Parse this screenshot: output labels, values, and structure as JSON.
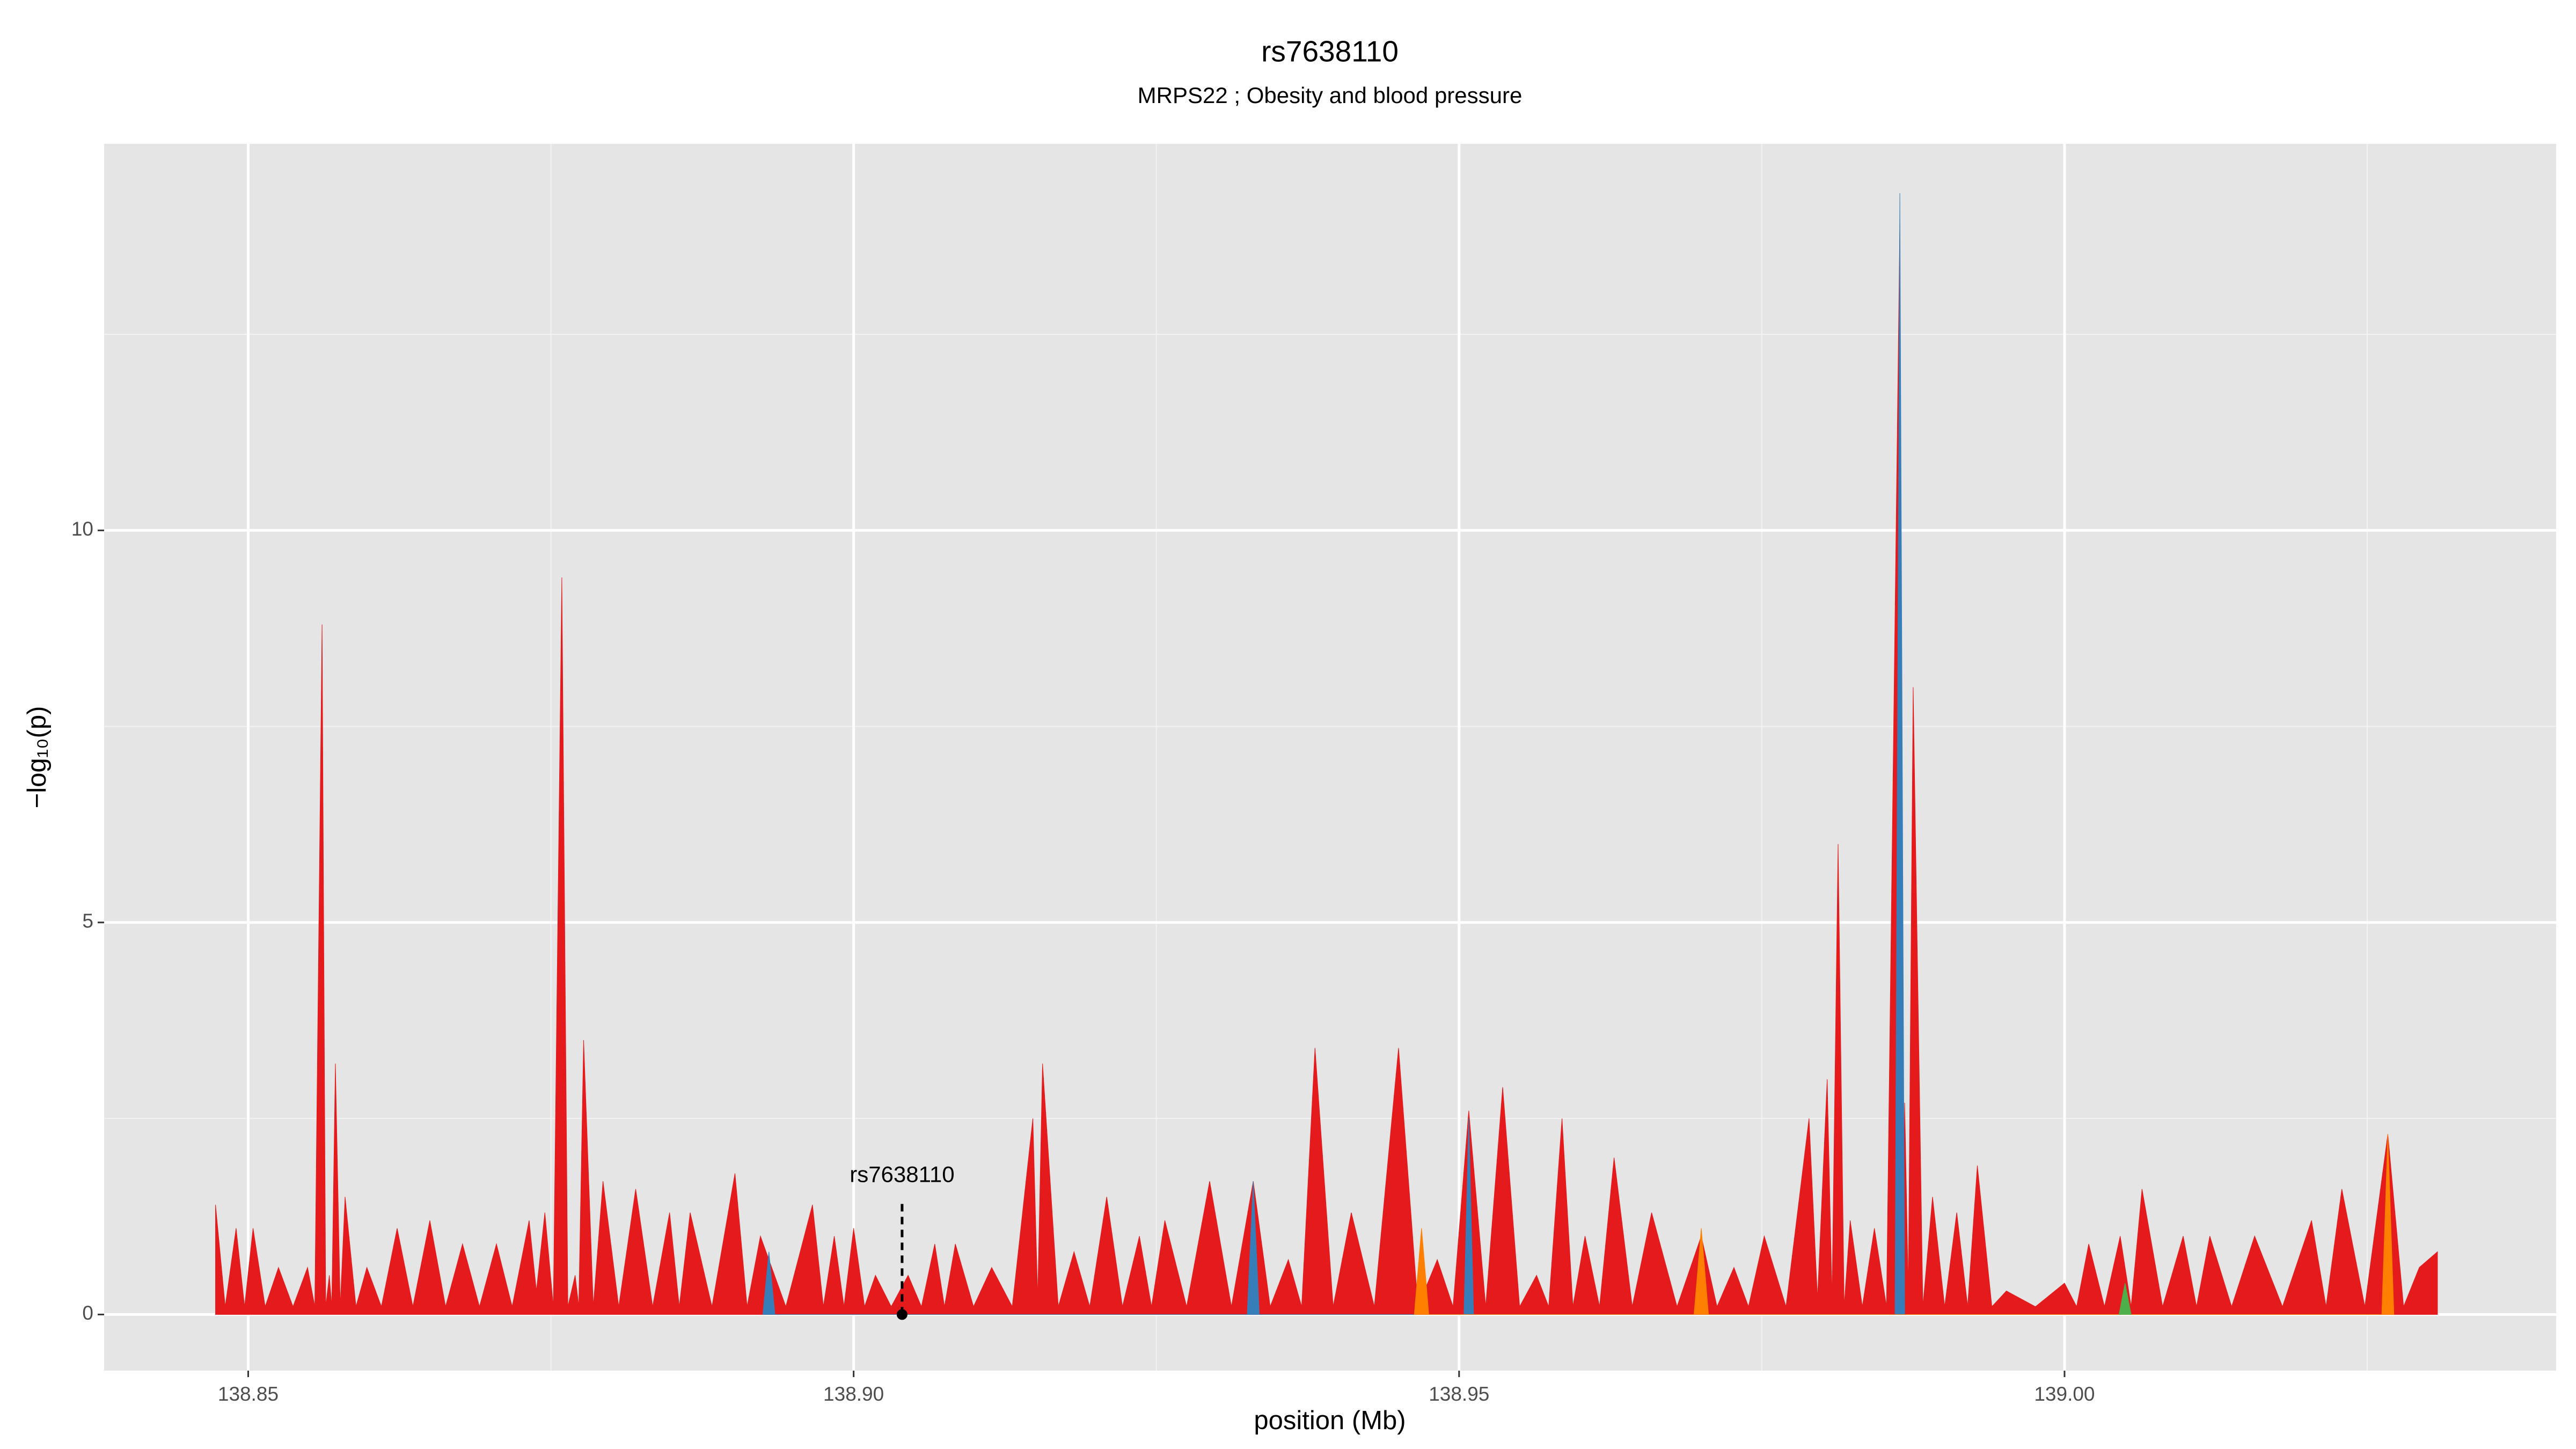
{
  "chart_data": {
    "type": "area",
    "title": "rs7638110",
    "subtitle": "MRPS22 ; Obesity and blood pressure",
    "x_label": "position (Mb)",
    "y_label": "−log₁₀(p)",
    "xlim": [
      138.8381,
      139.0406
    ],
    "ylim": [
      -0.716,
      14.93
    ],
    "xticks": [
      138.85,
      {
        "value": 138.9,
        "label": "138.90"
      },
      138.95,
      {
        "value": 139.0,
        "label": "139.00"
      }
    ],
    "xminor": [
      138.875,
      138.925,
      138.975,
      139.025
    ],
    "yticks": [
      0,
      5,
      10
    ],
    "yminor": [
      2.5,
      7.5,
      12.5
    ],
    "grid": true,
    "series": [
      {
        "color": "#e41a1c",
        "x": [
          138.8473,
          138.8481,
          138.849,
          138.8497,
          138.8504,
          138.8514,
          138.8525,
          138.8537,
          138.8549,
          138.8555,
          138.8561,
          138.8564,
          138.8567,
          138.8569,
          138.8572,
          138.8576,
          138.858,
          138.8589,
          138.8598,
          138.861,
          138.8623,
          138.8636,
          138.865,
          138.8663,
          138.8677,
          138.8691,
          138.8705,
          138.8718,
          138.8732,
          138.8738,
          138.8745,
          138.8752,
          138.8759,
          138.8764,
          138.877,
          138.8773,
          138.8777,
          138.8785,
          138.8793,
          138.8806,
          138.882,
          138.8834,
          138.8848,
          138.8856,
          138.8865,
          138.8883,
          138.8902,
          138.8912,
          138.8923,
          138.8944,
          138.8966,
          138.8975,
          138.8984,
          138.8992,
          138.9,
          138.9009,
          138.9018,
          138.9031,
          138.9045,
          138.9056,
          138.9067,
          138.9075,
          138.9084,
          138.9099,
          138.9114,
          138.9131,
          138.9148,
          138.9152,
          138.9156,
          138.9169,
          138.9182,
          138.9195,
          138.9209,
          138.9222,
          138.9236,
          138.9246,
          138.9257,
          138.9275,
          138.9294,
          138.9312,
          138.933,
          138.9344,
          138.9359,
          138.937,
          138.9381,
          138.9396,
          138.9411,
          138.943,
          138.945,
          138.9466,
          138.9482,
          138.9495,
          138.9508,
          138.9522,
          138.9536,
          138.955,
          138.9564,
          138.9574,
          138.9585,
          138.9594,
          138.9604,
          138.9616,
          138.9628,
          138.9643,
          138.9659,
          138.968,
          138.97,
          138.9713,
          138.9727,
          138.9739,
          138.9752,
          138.977,
          138.9789,
          138.9796,
          138.9804,
          138.9808,
          138.9813,
          138.9818,
          138.9823,
          138.9833,
          138.9843,
          138.9853,
          138.9864,
          138.9866,
          138.9868,
          138.9871,
          138.9875,
          138.9883,
          138.9891,
          138.9901,
          138.9911,
          138.992,
          138.9928,
          138.994,
          138.9952,
          138.9976,
          139.0,
          139.001,
          139.002,
          139.0033,
          139.0046,
          139.0055,
          139.0064,
          139.0081,
          139.0098,
          139.0109,
          139.012,
          139.0138,
          139.0157,
          139.018,
          139.0204,
          139.0216,
          139.0229,
          139.0248,
          139.0267,
          139.028,
          139.0293,
          139.0308
        ],
        "values": [
          1.4,
          0.1,
          1.1,
          0.1,
          1.1,
          0.1,
          0.6,
          0.1,
          0.6,
          0.1,
          8.8,
          0.1,
          0.5,
          0.1,
          3.2,
          0.1,
          1.5,
          0.1,
          0.6,
          0.1,
          1.1,
          0.1,
          1.2,
          0.1,
          0.9,
          0.1,
          0.9,
          0.1,
          1.2,
          0.3,
          1.3,
          0.1,
          9.4,
          0.1,
          0.5,
          0.1,
          3.5,
          0.1,
          1.7,
          0.1,
          1.6,
          0.1,
          1.3,
          0.1,
          1.3,
          0.1,
          1.8,
          0.1,
          1.0,
          0.1,
          1.4,
          0.1,
          1.0,
          0.1,
          1.1,
          0.1,
          0.5,
          0.1,
          0.5,
          0.1,
          0.9,
          0.1,
          0.9,
          0.1,
          0.6,
          0.1,
          2.5,
          0.2,
          3.2,
          0.1,
          0.8,
          0.1,
          1.5,
          0.1,
          1.0,
          0.1,
          1.2,
          0.1,
          1.7,
          0.1,
          1.7,
          0.1,
          0.7,
          0.1,
          3.4,
          0.1,
          1.3,
          0.1,
          3.4,
          0.1,
          0.7,
          0.1,
          2.6,
          0.1,
          2.9,
          0.1,
          0.5,
          0.1,
          2.5,
          0.1,
          1.0,
          0.1,
          2.0,
          0.1,
          1.3,
          0.1,
          1.0,
          0.1,
          0.6,
          0.1,
          1.0,
          0.1,
          2.5,
          0.2,
          3.0,
          0.2,
          6.0,
          0.1,
          1.2,
          0.1,
          1.1,
          0.1,
          13.9,
          0.3,
          2.7,
          0.3,
          8.0,
          0.1,
          1.5,
          0.1,
          1.3,
          0.1,
          1.9,
          0.1,
          0.3,
          0.1,
          0.4,
          0.1,
          0.9,
          0.1,
          1.0,
          0.1,
          1.6,
          0.1,
          1.0,
          0.1,
          1.0,
          0.1,
          1.0,
          0.1,
          1.2,
          0.1,
          1.6,
          0.1,
          2.3,
          0.1,
          0.6,
          0.8
        ]
      },
      {
        "color": "#377eb8",
        "x": [
          138.8925,
          138.893,
          138.8935,
          138.9325,
          138.933,
          138.9335,
          138.9504,
          138.9508,
          138.9512,
          138.986,
          138.9864,
          138.9868
        ],
        "values": [
          0.0,
          0.8,
          0.0,
          0.0,
          1.7,
          0.0,
          0.0,
          2.5,
          0.0,
          0.0,
          14.3,
          0.0
        ]
      },
      {
        "color": "#ff7f00",
        "x": [
          138.9463,
          138.9469,
          138.9475,
          138.9694,
          138.97,
          138.9706,
          139.0262,
          139.0267,
          139.0272
        ],
        "values": [
          0.0,
          1.1,
          0.0,
          0.0,
          1.1,
          0.0,
          0.0,
          2.3,
          0.0
        ]
      },
      {
        "color": "#4daf4a",
        "x": [
          139.0045,
          139.005,
          139.0055
        ],
        "values": [
          0.0,
          0.4,
          0.0
        ]
      }
    ],
    "annotation": {
      "text": "rs7638110",
      "x": 138.904,
      "y": 0
    }
  }
}
